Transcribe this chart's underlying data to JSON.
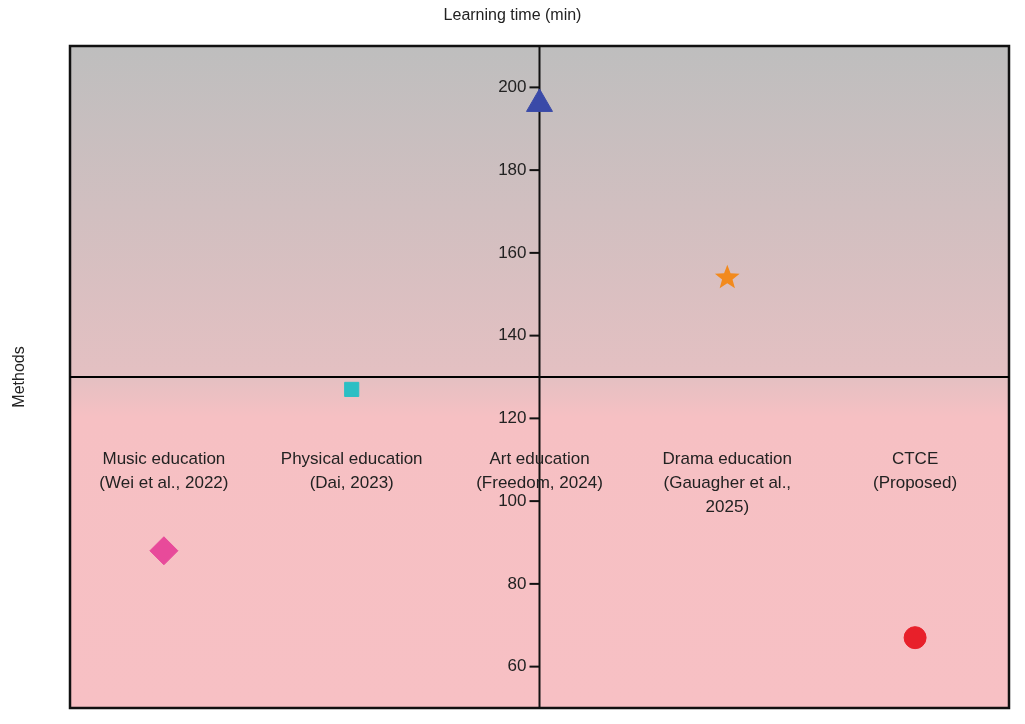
{
  "chart_data": {
    "type": "scatter",
    "xlabel": "Learning time (min)",
    "ylabel": "Methods",
    "categories": [
      "Music education (Wei et al., 2022)",
      "Physical education (Dai, 2023)",
      "Art education (Freedom, 2024)",
      "Drama education (Gauagher et al., 2025)",
      "CTCE (Proposed)"
    ],
    "ylim": [
      50,
      210
    ],
    "yticks": [
      200,
      180,
      160,
      140,
      120,
      100,
      80,
      60
    ],
    "ref_lines": [
      {
        "axis": "y",
        "value": 130,
        "color": "#000000"
      }
    ],
    "legend": false,
    "series": [
      {
        "color": "#e84a9a",
        "marker": "diamond",
        "x": [
          "Music education (Wei et al., 2022)"
        ],
        "values": [
          88
        ]
      },
      {
        "color": "#2bbfc4",
        "marker": "square",
        "x": [
          "Physical education (Dai, 2023)"
        ],
        "values": [
          127
        ]
      },
      {
        "color": "#3a4aa8",
        "marker": "triangle",
        "x": [
          "Art education (Freedom, 2024)"
        ],
        "values": [
          196
        ]
      },
      {
        "color": "#f28a1e",
        "marker": "star",
        "x": [
          "Drama education (Gauagher et al., 2025)"
        ],
        "values": [
          154
        ]
      },
      {
        "color": "#e8202a",
        "marker": "circle",
        "x": [
          "CTCE (Proposed)"
        ],
        "values": [
          67
        ]
      }
    ]
  }
}
